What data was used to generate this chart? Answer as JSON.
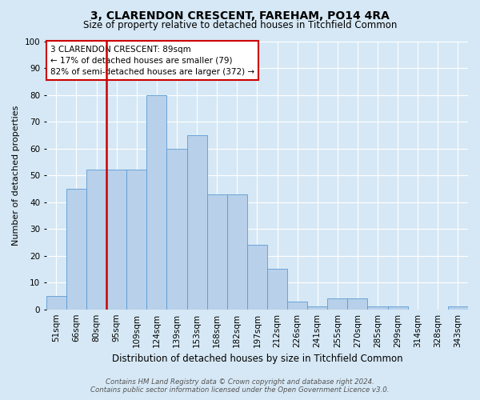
{
  "title": "3, CLARENDON CRESCENT, FAREHAM, PO14 4RA",
  "subtitle": "Size of property relative to detached houses in Titchfield Common",
  "xlabel": "Distribution of detached houses by size in Titchfield Common",
  "ylabel": "Number of detached properties",
  "footnote1": "Contains HM Land Registry data © Crown copyright and database right 2024.",
  "footnote2": "Contains public sector information licensed under the Open Government Licence v3.0.",
  "bar_labels": [
    "51sqm",
    "66sqm",
    "80sqm",
    "95sqm",
    "109sqm",
    "124sqm",
    "139sqm",
    "153sqm",
    "168sqm",
    "182sqm",
    "197sqm",
    "212sqm",
    "226sqm",
    "241sqm",
    "255sqm",
    "270sqm",
    "285sqm",
    "299sqm",
    "314sqm",
    "328sqm",
    "343sqm"
  ],
  "bar_values": [
    5,
    45,
    52,
    52,
    52,
    80,
    60,
    65,
    43,
    43,
    24,
    15,
    3,
    1,
    4,
    4,
    1,
    1,
    0,
    0,
    1
  ],
  "bar_color": "#b8d0ea",
  "bar_edge_color": "#5b9bd5",
  "ylim": [
    0,
    100
  ],
  "yticks": [
    0,
    10,
    20,
    30,
    40,
    50,
    60,
    70,
    80,
    90,
    100
  ],
  "vline_x": 2.5,
  "vline_color": "#cc0000",
  "annotation_text": "3 CLARENDON CRESCENT: 89sqm\n← 17% of detached houses are smaller (79)\n82% of semi-detached houses are larger (372) →",
  "annotation_box_color": "#ffffff",
  "annotation_box_edge": "#cc0000",
  "bg_color": "#d6e8f5",
  "plot_bg_color": "#d6e8f5",
  "grid_color": "#ffffff",
  "title_fontsize": 10,
  "subtitle_fontsize": 8.5,
  "axis_label_fontsize": 8.5,
  "tick_fontsize": 7.5,
  "annotation_fontsize": 7.5,
  "ylabel_fontsize": 8
}
